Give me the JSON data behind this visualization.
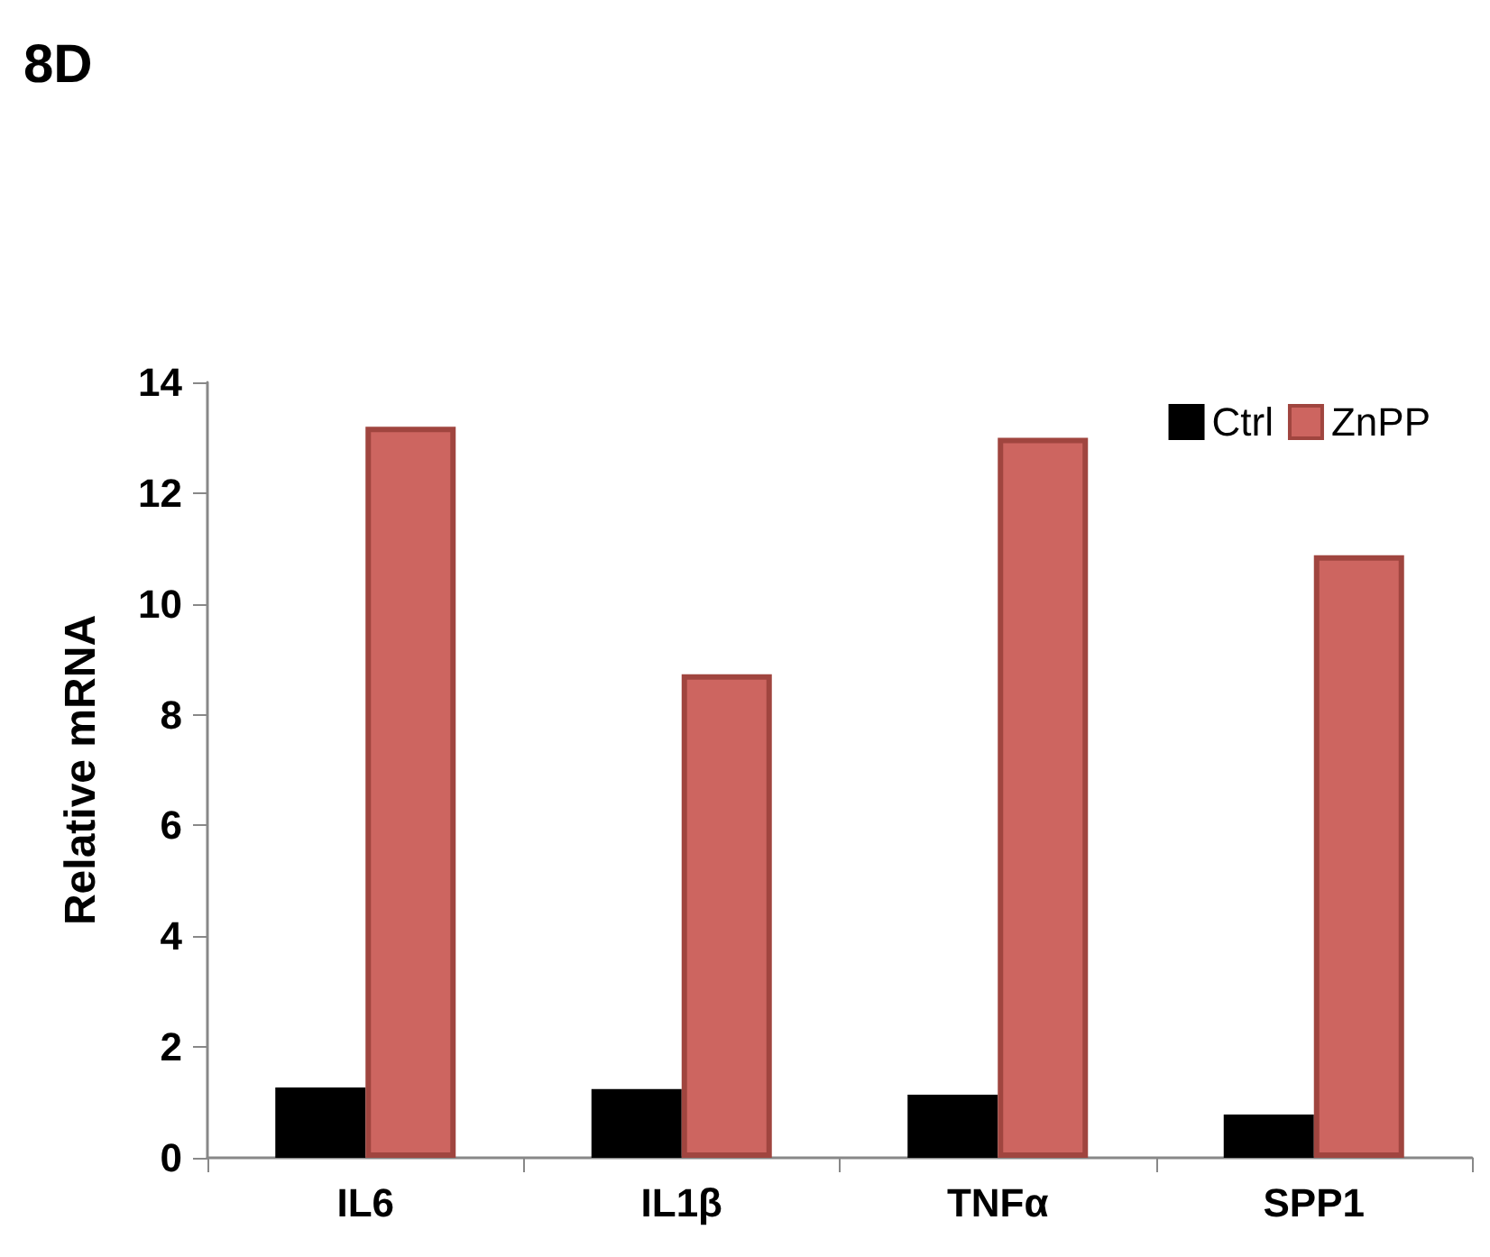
{
  "chart_data": {
    "type": "bar",
    "title": "8D",
    "ylabel": "Relative mRNA",
    "categories": [
      "IL6",
      "IL1β",
      "TNFα",
      "SPP1"
    ],
    "series": [
      {
        "name": "Ctrl",
        "color": "#000000",
        "values": [
          1.27,
          1.24,
          1.14,
          0.78
        ]
      },
      {
        "name": "ZnPP",
        "color": "#cd6560",
        "values": [
          13.2,
          8.73,
          13.0,
          10.88
        ]
      }
    ],
    "ylim": [
      0,
      14
    ],
    "yticks": [
      0,
      2,
      4,
      6,
      8,
      10,
      12,
      14
    ],
    "grid": false,
    "legend": "top right"
  }
}
